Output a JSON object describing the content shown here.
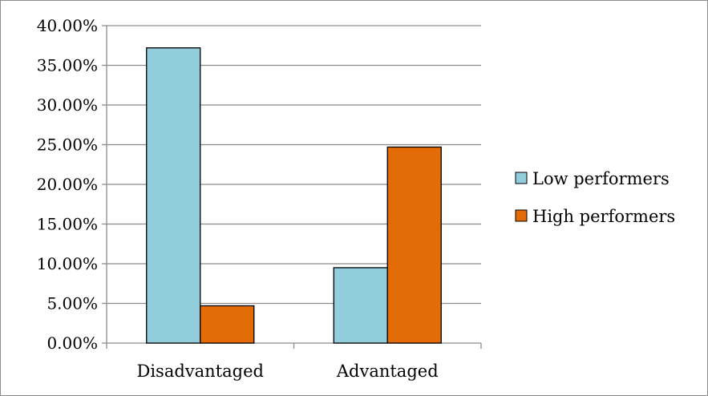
{
  "chart_data": {
    "type": "bar",
    "title": "",
    "xlabel": "",
    "ylabel": "",
    "categories": [
      "Disadvantaged",
      "Advantaged"
    ],
    "series": [
      {
        "name": "Low performers",
        "values": [
          0.372,
          0.095
        ],
        "color": "#92cddc"
      },
      {
        "name": "High performers",
        "values": [
          0.047,
          0.247
        ],
        "color": "#e36c09"
      }
    ],
    "ylim": [
      0,
      0.4
    ],
    "yticks": [
      0,
      0.05,
      0.1,
      0.15,
      0.2,
      0.25,
      0.3,
      0.35,
      0.4
    ],
    "ytick_labels": [
      "0.00%",
      "5.00%",
      "10.00%",
      "15.00%",
      "20.00%",
      "25.00%",
      "30.00%",
      "35.00%",
      "40.00%"
    ],
    "grid": true,
    "legend_position": "right",
    "gridline_color": "#8c8c8c",
    "bar_outline_color": "#000000"
  }
}
